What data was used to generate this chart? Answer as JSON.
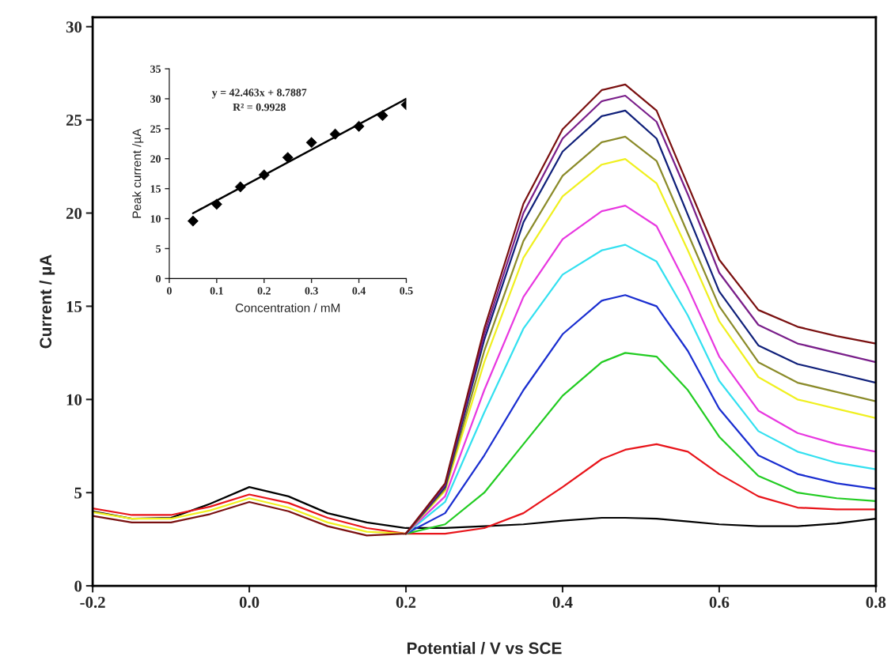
{
  "chart_data": [
    {
      "type": "line",
      "xlabel": "Potential / V vs SCE",
      "ylabel": "Current / µA",
      "xlim": [
        -0.2,
        0.8
      ],
      "ylim": [
        0,
        30.5
      ],
      "xticks": [
        {
          "value": -0.2,
          "label": "-0.2"
        },
        {
          "value": 0,
          "label": "0.0"
        },
        {
          "value": 0.2,
          "label": "0.2"
        },
        {
          "value": 0.4,
          "label": "0.4"
        },
        {
          "value": 0.6,
          "label": "0.6"
        },
        {
          "value": 0.8,
          "label": "0.8"
        }
      ],
      "yticks": [
        0,
        5,
        10,
        15,
        20,
        25,
        30
      ],
      "grid": false,
      "legend": false,
      "x": [
        -0.2,
        -0.15,
        -0.1,
        -0.05,
        0,
        0.05,
        0.1,
        0.15,
        0.2,
        0.25,
        0.3,
        0.35,
        0.4,
        0.45,
        0.48,
        0.52,
        0.56,
        0.6,
        0.65,
        0.7,
        0.75,
        0.8
      ],
      "series": [
        {
          "color": "#000000",
          "values": [
            4.0,
            3.6,
            3.65,
            4.4,
            5.3,
            4.8,
            3.9,
            3.4,
            3.1,
            3.1,
            3.2,
            3.3,
            3.5,
            3.65,
            3.65,
            3.6,
            3.45,
            3.3,
            3.2,
            3.2,
            3.35,
            3.6
          ]
        },
        {
          "color": "#e8141a",
          "values": [
            4.15,
            3.8,
            3.8,
            4.25,
            4.9,
            4.45,
            3.65,
            3.1,
            2.8,
            2.8,
            3.1,
            3.9,
            5.3,
            6.8,
            7.3,
            7.6,
            7.2,
            6.0,
            4.8,
            4.2,
            4.1,
            4.1
          ]
        },
        {
          "color": "#22cc22",
          "values": [
            null,
            null,
            null,
            null,
            null,
            null,
            null,
            null,
            2.8,
            3.3,
            5.0,
            7.6,
            10.2,
            12.0,
            12.5,
            12.3,
            10.5,
            8.0,
            5.9,
            5.0,
            4.7,
            4.55
          ]
        },
        {
          "color": "#1a2ed0",
          "values": [
            null,
            null,
            null,
            null,
            null,
            null,
            null,
            null,
            2.8,
            3.9,
            7.0,
            10.5,
            13.5,
            15.3,
            15.6,
            15.0,
            12.6,
            9.5,
            7.0,
            6.0,
            5.5,
            5.2
          ]
        },
        {
          "color": "#33e0f0",
          "values": [
            null,
            null,
            null,
            null,
            null,
            null,
            null,
            null,
            2.8,
            4.5,
            9.3,
            13.8,
            16.7,
            18.0,
            18.3,
            17.4,
            14.5,
            11.0,
            8.3,
            7.2,
            6.6,
            6.25
          ]
        },
        {
          "color": "#e838e0",
          "values": [
            null,
            null,
            null,
            null,
            null,
            null,
            null,
            null,
            2.8,
            4.8,
            10.5,
            15.5,
            18.6,
            20.1,
            20.4,
            19.3,
            16.0,
            12.3,
            9.4,
            8.2,
            7.6,
            7.2
          ]
        },
        {
          "color": "#f0f020",
          "values": [
            3.95,
            3.6,
            3.6,
            4.05,
            4.7,
            4.2,
            3.4,
            2.9,
            2.8,
            5.1,
            12.0,
            17.6,
            20.9,
            22.6,
            22.9,
            21.6,
            18.0,
            14.2,
            11.2,
            10.0,
            9.5,
            9.0
          ]
        },
        {
          "color": "#8b8b2a",
          "values": [
            null,
            null,
            null,
            null,
            null,
            null,
            null,
            null,
            2.8,
            5.2,
            12.6,
            18.5,
            22.0,
            23.8,
            24.1,
            22.8,
            18.9,
            15.0,
            12.0,
            10.9,
            10.4,
            9.9
          ]
        },
        {
          "color": "#10207a",
          "values": [
            null,
            null,
            null,
            null,
            null,
            null,
            null,
            null,
            2.8,
            5.3,
            13.2,
            19.5,
            23.3,
            25.2,
            25.5,
            24.0,
            19.9,
            15.8,
            12.9,
            11.9,
            11.4,
            10.9
          ]
        },
        {
          "color": "#7a1f8a",
          "values": [
            null,
            null,
            null,
            null,
            null,
            null,
            null,
            null,
            2.8,
            5.4,
            13.5,
            20.0,
            24.0,
            26.0,
            26.3,
            24.9,
            21.0,
            16.8,
            14.0,
            13.0,
            12.5,
            12.0
          ]
        },
        {
          "color": "#7a1010",
          "values": [
            3.75,
            3.4,
            3.4,
            3.85,
            4.5,
            4.0,
            3.2,
            2.7,
            2.8,
            5.5,
            13.8,
            20.5,
            24.5,
            26.6,
            26.9,
            25.5,
            21.5,
            17.5,
            14.8,
            13.9,
            13.4,
            13.0
          ]
        }
      ]
    },
    {
      "type": "scatter",
      "xlabel": "Concentration / mM",
      "ylabel": "Peak current /µA",
      "xlim": [
        0,
        0.5
      ],
      "ylim": [
        0,
        35
      ],
      "xticks": [
        0,
        0.1,
        0.2,
        0.3,
        0.4,
        0.5
      ],
      "yticks": [
        0,
        5,
        10,
        15,
        20,
        25,
        30,
        35
      ],
      "grid": false,
      "legend": false,
      "annotations": [
        "y = 42.463x + 8.7887",
        "R² = 0.9928"
      ],
      "series": [
        {
          "type": "scatter",
          "color": "#000000",
          "marker": "diamond",
          "x": [
            0.05,
            0.1,
            0.15,
            0.2,
            0.25,
            0.3,
            0.35,
            0.4,
            0.45,
            0.5
          ],
          "values": [
            9.6,
            12.4,
            15.3,
            17.3,
            20.2,
            22.7,
            24.1,
            25.4,
            27.2,
            29.0
          ]
        },
        {
          "type": "line",
          "color": "#000000",
          "x": [
            0.05,
            0.5
          ],
          "values": [
            10.9,
            30.0
          ]
        }
      ]
    }
  ]
}
